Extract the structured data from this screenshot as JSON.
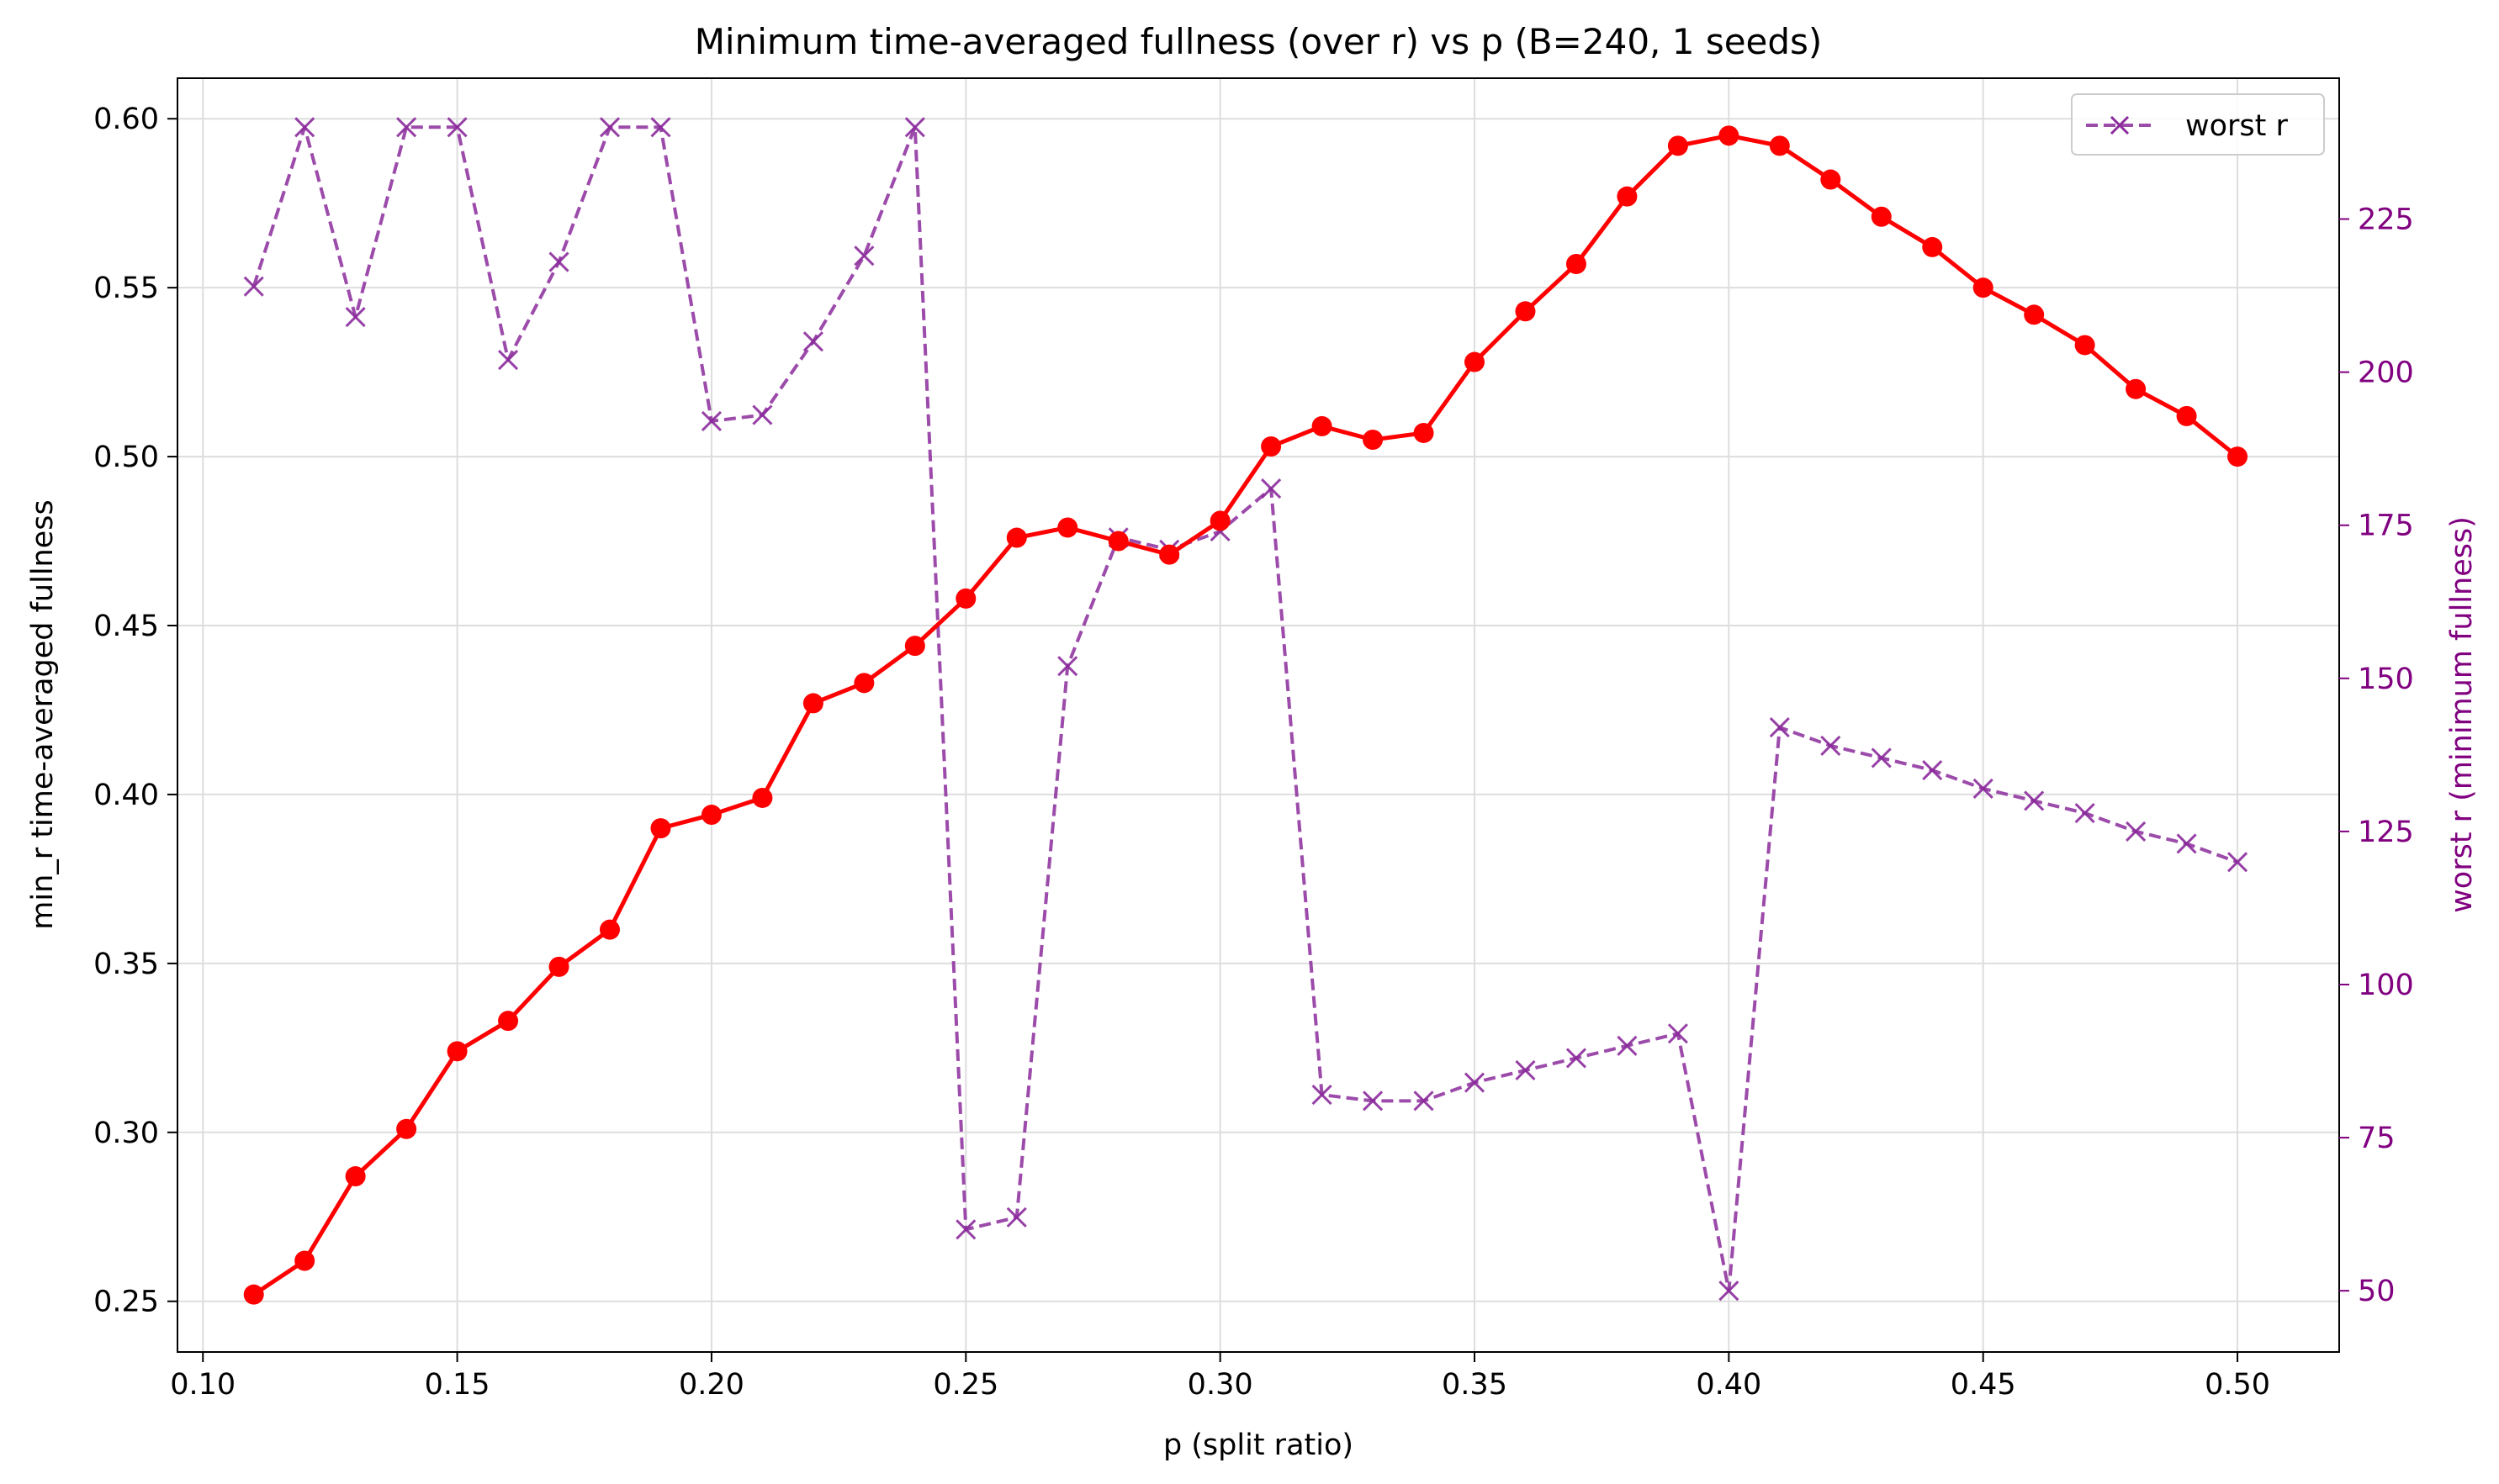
{
  "chart_data": {
    "type": "line",
    "title": "Minimum time-averaged fullness (over r) vs p (B=240, 1 seeds)",
    "xlabel": "p (split ratio)",
    "ylabel": "min_r time-averaged fullness",
    "y2label": "worst r (minimum fullness)",
    "xlim": [
      0.095,
      0.52
    ],
    "ylim": [
      0.235,
      0.612
    ],
    "y2lim": [
      40,
      248
    ],
    "xticks": [
      0.1,
      0.15,
      0.2,
      0.25,
      0.3,
      0.35,
      0.4,
      0.45,
      0.5
    ],
    "xtick_labels": [
      "0.10",
      "0.15",
      "0.20",
      "0.25",
      "0.30",
      "0.35",
      "0.40",
      "0.45",
      "0.50"
    ],
    "yticks": [
      0.25,
      0.3,
      0.35,
      0.4,
      0.45,
      0.5,
      0.55,
      0.6
    ],
    "ytick_labels": [
      "0.25",
      "0.30",
      "0.35",
      "0.40",
      "0.45",
      "0.50",
      "0.55",
      "0.60"
    ],
    "y2ticks": [
      50,
      75,
      100,
      125,
      150,
      175,
      200,
      225
    ],
    "y2tick_labels": [
      "50",
      "75",
      "100",
      "125",
      "150",
      "175",
      "200",
      "225"
    ],
    "grid": true,
    "legend_position": "top-right",
    "x": [
      0.11,
      0.12,
      0.13,
      0.14,
      0.15,
      0.16,
      0.17,
      0.18,
      0.19,
      0.2,
      0.21,
      0.22,
      0.23,
      0.24,
      0.25,
      0.26,
      0.27,
      0.28,
      0.29,
      0.3,
      0.31,
      0.32,
      0.33,
      0.34,
      0.35,
      0.36,
      0.37,
      0.38,
      0.39,
      0.4,
      0.41,
      0.42,
      0.43,
      0.44,
      0.45,
      0.46,
      0.47,
      0.48,
      0.49,
      0.5
    ],
    "series": [
      {
        "axis": "left",
        "color": "#ff0000",
        "style": "solid",
        "marker": "circle",
        "values": [
          0.252,
          0.262,
          0.287,
          0.301,
          0.324,
          0.333,
          0.349,
          0.36,
          0.39,
          0.394,
          0.399,
          0.427,
          0.433,
          0.444,
          0.458,
          0.476,
          0.479,
          0.475,
          0.471,
          0.481,
          0.503,
          0.509,
          0.505,
          0.507,
          0.528,
          0.543,
          0.557,
          0.577,
          0.592,
          0.595,
          0.592,
          0.582,
          0.571,
          0.562,
          0.55,
          0.542,
          0.533,
          0.52,
          0.512,
          0.5
        ]
      },
      {
        "name": "worst r",
        "axis": "right",
        "color": "#8b2b9b",
        "style": "dashed",
        "marker": "x",
        "values": [
          214,
          240,
          209,
          240,
          240,
          202,
          218,
          240,
          240,
          192,
          193,
          205,
          219,
          240,
          60,
          62,
          152,
          173,
          171,
          174,
          181,
          82,
          81,
          81,
          84,
          86,
          88,
          90,
          92,
          50,
          142,
          139,
          137,
          135,
          132,
          130,
          128,
          125,
          123,
          120
        ]
      }
    ]
  },
  "colors": {
    "right_axis": "#800080",
    "grid": "#dddddd"
  }
}
